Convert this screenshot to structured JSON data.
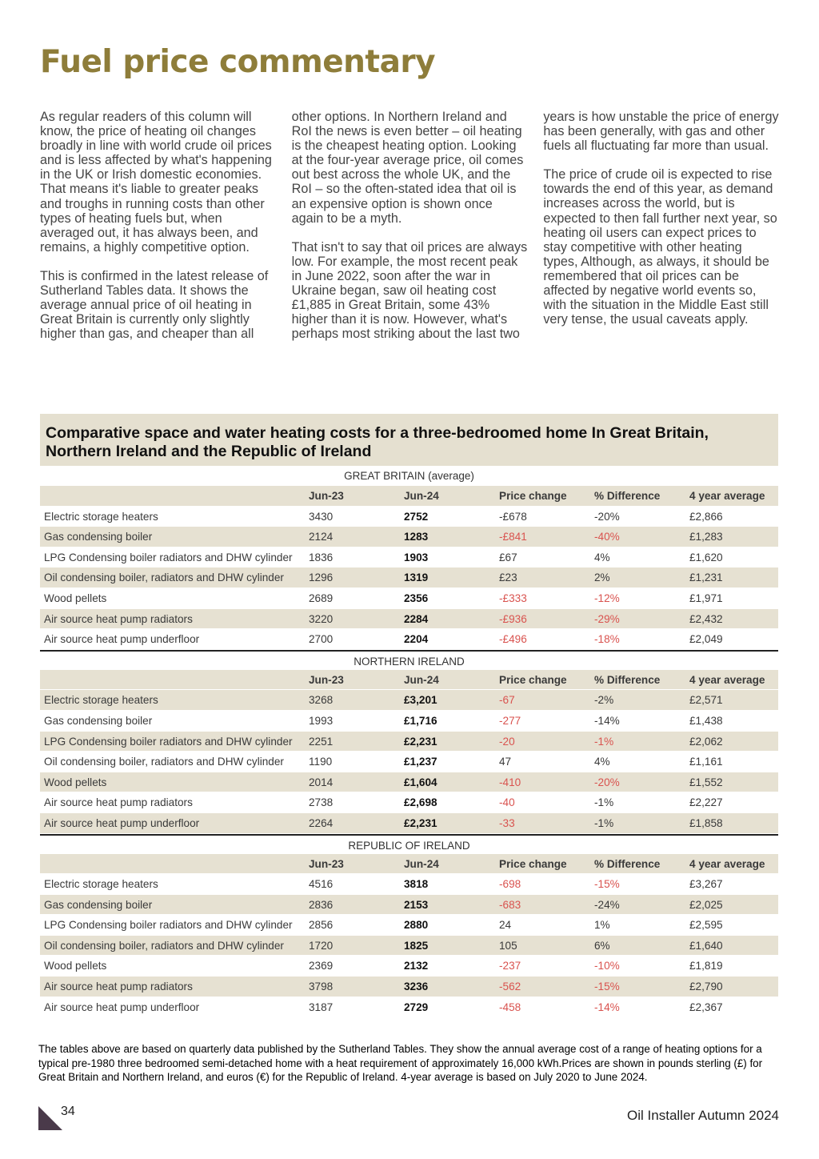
{
  "header": {
    "title": "Fuel price commentary"
  },
  "body": {
    "paragraphs": [
      "As regular readers of this column will know, the price of heating oil changes broadly in line with world crude oil prices and is less affected by what's happening in the UK or Irish domestic economies. That means it's liable to greater peaks and troughs in running costs than other types of heating fuels but, when averaged out, it has always been, and remains, a highly competitive option.",
      "This is confirmed in the latest release of Sutherland Tables data. It shows the average annual price of oil heating in Great Britain is currently only slightly higher than gas, and cheaper than all other options. In Northern Ireland and RoI the news is even better – oil heating is the cheapest heating option. Looking at the four-year average price, oil comes out best across the whole UK, and the RoI – so the often-stated idea that oil is an expensive option is shown once again to be a myth.",
      "That isn't to say that oil prices are always low. For example, the most recent peak in June 2022, soon after the war in Ukraine began, saw oil heating cost £1,885 in Great Britain, some 43% higher than it is now. However, what's perhaps most striking about the last two years is how unstable the price of energy has been generally, with gas and other fuels all fluctuating far more than usual.",
      "The price of crude oil is expected to rise towards the end of this year, as demand increases across the world, but is expected to then fall further next year, so heating oil users can expect prices to stay competitive with other heating types, Although, as always, it should be remembered that oil prices can be affected by negative world events so, with the situation in the Middle East still very tense, the usual caveats apply."
    ]
  },
  "table": {
    "title": "Comparative space and water heating costs for a three-bedroomed home In Great Britain, Northern Ireland and the Republic of Ireland",
    "sections": [
      {
        "heading": "GREAT BRITAIN (average)",
        "columns": [
          "Jun-23",
          "Jun-24",
          "Price change",
          "% Difference",
          "4 year average"
        ],
        "rows": [
          [
            "Electric storage heaters",
            "3430",
            "2752",
            "-£678",
            "-20%",
            "£2,866"
          ],
          [
            "Gas condensing boiler",
            "2124",
            "1283",
            "-£841",
            "-40%",
            "£1,283"
          ],
          [
            "LPG Condensing boiler radiators and DHW cylinder",
            "1836",
            "1903",
            "£67",
            "4%",
            "£1,620"
          ],
          [
            "Oil condensing boiler, radiators and DHW cylinder",
            "1296",
            "1319",
            "£23",
            "2%",
            "£1,231"
          ],
          [
            "Wood pellets",
            "2689",
            "2356",
            "-£333",
            "-12%",
            "£1,971"
          ],
          [
            "Air source heat pump radiators",
            "3220",
            "2284",
            "-£936",
            "-29%",
            "£2,432"
          ],
          [
            "Air source heat pump underfloor",
            "2700",
            "2204",
            "-£496",
            "-18%",
            "£2,049"
          ]
        ]
      },
      {
        "heading": "NORTHERN IRELAND",
        "columns": [
          "Jun-23",
          "Jun-24",
          "Price change",
          "% Difference",
          "4 year average"
        ],
        "rows": [
          [
            "Electric storage heaters",
            "3268",
            "£3,201",
            "-67",
            "-2%",
            "£2,571"
          ],
          [
            "Gas condensing boiler",
            "1993",
            "£1,716",
            "-277",
            "-14%",
            "£1,438"
          ],
          [
            "LPG Condensing boiler radiators and DHW cylinder",
            "2251",
            "£2,231",
            "-20",
            "-1%",
            "£2,062"
          ],
          [
            "Oil condensing boiler, radiators and DHW cylinder",
            "1190",
            "£1,237",
            "47",
            "4%",
            "£1,161"
          ],
          [
            "Wood pellets",
            "2014",
            "£1,604",
            "-410",
            "-20%",
            "£1,552"
          ],
          [
            "Air source heat pump radiators",
            "2738",
            "£2,698",
            "-40",
            "-1%",
            "£2,227"
          ],
          [
            "Air source heat pump underfloor",
            "2264",
            "£2,231",
            "-33",
            "-1%",
            "£1,858"
          ]
        ]
      },
      {
        "heading": "REPUBLIC OF IRELAND",
        "columns": [
          "Jun-23",
          "Jun-24",
          "Price change",
          "% Difference",
          "4 year average"
        ],
        "rows": [
          [
            "Electric storage heaters",
            "4516",
            "3818",
            "-698",
            "-15%",
            "£3,267"
          ],
          [
            "Gas condensing boiler",
            "2836",
            "2153",
            "-683",
            "-24%",
            "£2,025"
          ],
          [
            "LPG Condensing boiler radiators and DHW cylinder",
            "2856",
            "2880",
            "24",
            "1%",
            "£2,595"
          ],
          [
            "Oil condensing boiler, radiators and DHW cylinder",
            "1720",
            "1825",
            "105",
            "6%",
            "£1,640"
          ],
          [
            "Wood pellets",
            "2369",
            "2132",
            "-237",
            "-10%",
            "£1,819"
          ],
          [
            "Air source heat pump radiators",
            "3798",
            "3236",
            "-562",
            "-15%",
            "£2,790"
          ],
          [
            "Air source heat pump underfloor",
            "3187",
            "2729",
            "-458",
            "-14%",
            "£2,367"
          ]
        ]
      }
    ],
    "note": "The tables above are based on quarterly data published by the Sutherland Tables. They show the annual average cost of a range of heating options for a typical pre-1980 three bedroomed semi-detached home with a heat requirement of approximately 16,000 kWh.Prices are shown in pounds sterling (£) for Great Britain and Northern Ireland, and euros (€) for the Republic of Ireland. 4-year average is based on July 2020 to June 2024."
  },
  "footer": {
    "page_number": "34",
    "publication": "Oil Installer Autumn 2024"
  }
}
